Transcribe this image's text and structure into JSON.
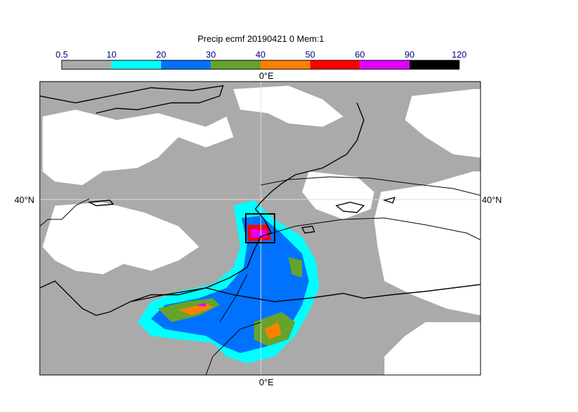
{
  "title": "Precip ecmf 20190421 0 Mem:1",
  "colorbar": {
    "levels": [
      0.5,
      10,
      20,
      30,
      40,
      50,
      60,
      90,
      120
    ],
    "colors": [
      "#aaaaaa",
      "#00ffff",
      "#0072ff",
      "#66a32b",
      "#ff8000",
      "#ff0000",
      "#e000ff",
      "#000000"
    ]
  },
  "map": {
    "top_label": "0°E",
    "bottom_label": "0°E",
    "left_label": "40°N",
    "right_label": "40°N"
  }
}
